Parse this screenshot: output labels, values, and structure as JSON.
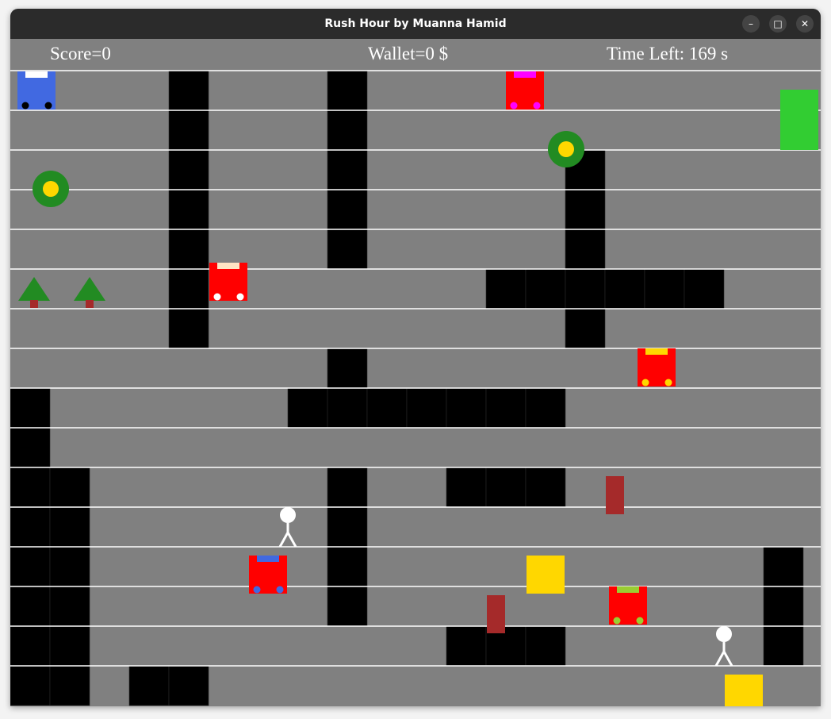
{
  "window": {
    "title": "Rush Hour by Muanna Hamid",
    "controls": {
      "minimize": "–",
      "maximize": "□",
      "close": "✕"
    }
  },
  "hud": {
    "score_text": "Score=0",
    "wallet_text": "Wallet=0 $",
    "time_text": "Time Left: 169 s"
  },
  "colors": {
    "road": "#808080",
    "lane_line": "#ffffff",
    "building": "#000000",
    "player_car": "#4169e1",
    "npc_car": "#ff0000",
    "tree_top": "#228b22",
    "tree_trunk": "#a52a2a",
    "coin_ring": "#228b22",
    "coin_center": "#ffd700",
    "obstacle": "#a52a2a",
    "dropoff": "#ffd700",
    "destination": "#32cd32"
  },
  "entities": {
    "player_car": {
      "icon": "taxi-car-icon"
    },
    "npc_cars": [
      {
        "roof": "#ff00ff"
      },
      {
        "roof": "#ffe4c4"
      },
      {
        "roof": "#ffd700"
      },
      {
        "roof": "#4169e1"
      },
      {
        "roof": "#9acd32"
      }
    ],
    "passengers": 2,
    "coins": 2,
    "trees": 2,
    "obstacles": 2,
    "dropoffs": 2,
    "destinations": 1
  }
}
